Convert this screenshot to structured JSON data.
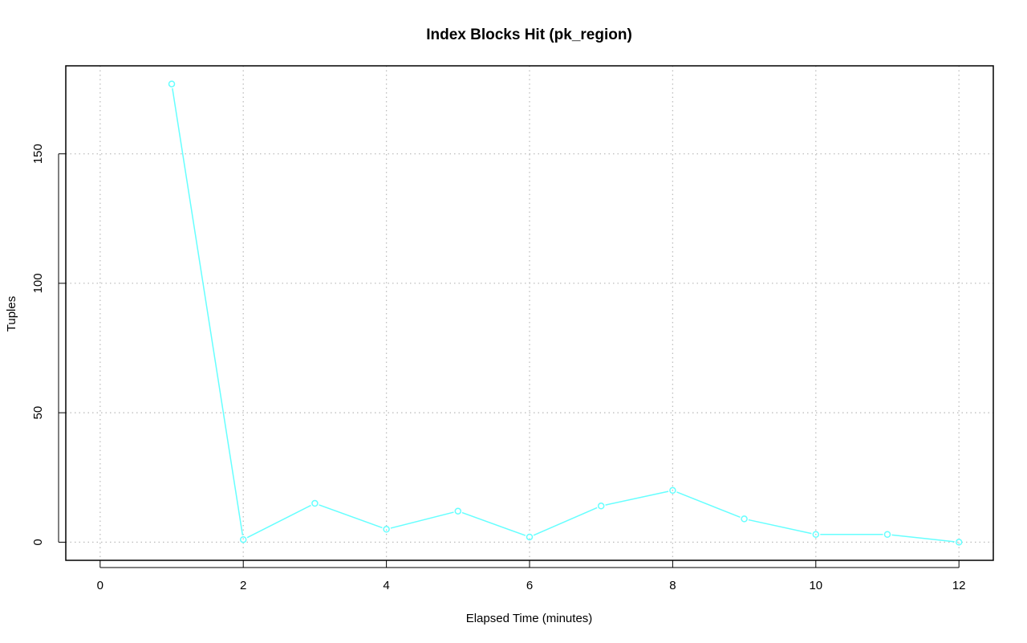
{
  "chart_data": {
    "type": "line",
    "title": "Index Blocks Hit (pk_region)",
    "xlabel": "Elapsed Time (minutes)",
    "ylabel": "Tuples",
    "x": [
      1,
      2,
      3,
      4,
      5,
      6,
      7,
      8,
      9,
      10,
      11,
      12
    ],
    "series": [
      {
        "values": [
          177,
          1,
          15,
          5,
          12,
          2,
          14,
          20,
          9,
          3,
          3,
          0
        ],
        "color": "#66ffff",
        "marker": "open-circle"
      }
    ],
    "xlim": [
      -0.48,
      12.48
    ],
    "ylim": [
      -7,
      184
    ],
    "xticks": [
      0,
      2,
      4,
      6,
      8,
      10,
      12
    ],
    "yticks": [
      0,
      50,
      100,
      150
    ],
    "grid": true,
    "grid_color": "#bebebe",
    "grid_style": "dotted"
  }
}
